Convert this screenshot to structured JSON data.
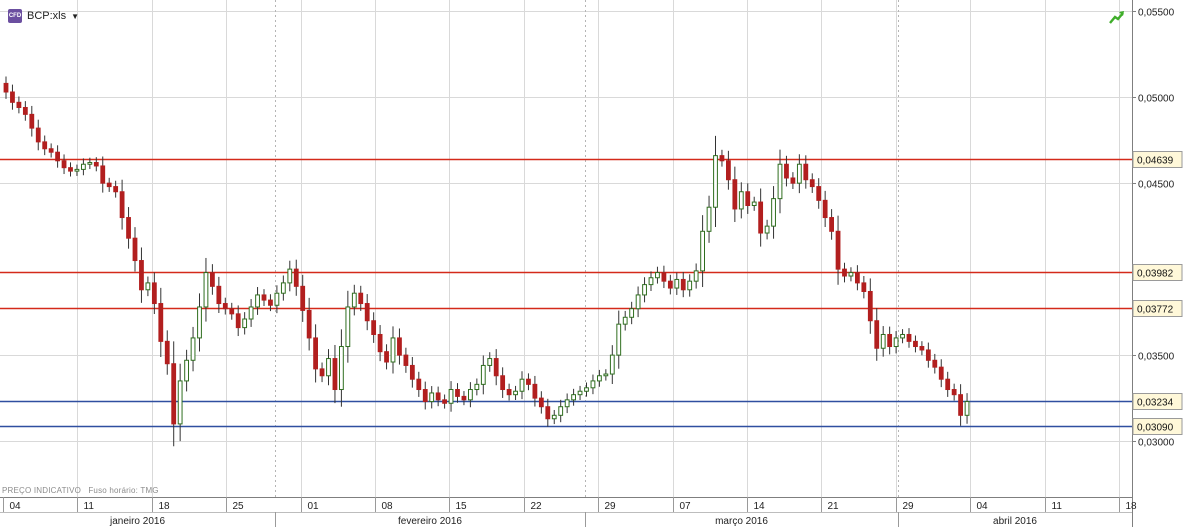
{
  "header": {
    "badge": "CFD",
    "symbol": "BCP:xls"
  },
  "footer": {
    "price_type": "PREÇO INDICATIVO",
    "timezone": "Fuso horário: TMG"
  },
  "colors": {
    "up": "#2f6e1f",
    "down": "#b21f1f",
    "resistance": "#d42a1a",
    "support": "#2f4fa0",
    "grid": "#d9d9d9",
    "label_bg": "#fff8d9"
  },
  "chart_data": {
    "type": "candlestick",
    "title": "",
    "xlabel": "",
    "ylabel": "",
    "ylim": [
      0.02675,
      0.05565
    ],
    "yticks": [
      "0,05500",
      "0,05000",
      "0,04500",
      "0,03500",
      "0,03000"
    ],
    "ytick_values": [
      0.055,
      0.05,
      0.045,
      0.035,
      0.03
    ],
    "x_day_labels": [
      "04",
      "11",
      "18",
      "25",
      "01",
      "08",
      "15",
      "22",
      "29",
      "07",
      "14",
      "21",
      "29",
      "04",
      "11",
      "18"
    ],
    "x_month_labels": [
      "janeiro 2016",
      "fevereiro 2016",
      "março 2016",
      "abril 2016"
    ],
    "grid": true,
    "horizontal_lines": [
      {
        "value": 0.04639,
        "label": "0,04639",
        "kind": "resistance"
      },
      {
        "value": 0.03982,
        "label": "0,03982",
        "kind": "resistance"
      },
      {
        "value": 0.03772,
        "label": "0,03772",
        "kind": "resistance"
      },
      {
        "value": 0.03234,
        "label": "0,03234",
        "kind": "support"
      },
      {
        "value": 0.0309,
        "label": "0,03090",
        "kind": "support"
      }
    ],
    "close": [
      0.0503,
      0.0497,
      0.0494,
      0.049,
      0.0482,
      0.0474,
      0.047,
      0.0468,
      0.0463,
      0.0459,
      0.0457,
      0.0458,
      0.0461,
      0.0462,
      0.046,
      0.045,
      0.0448,
      0.0445,
      0.043,
      0.0418,
      0.0405,
      0.0388,
      0.0392,
      0.038,
      0.0358,
      0.0345,
      0.031,
      0.0335,
      0.0347,
      0.036,
      0.0378,
      0.0398,
      0.039,
      0.038,
      0.0377,
      0.0374,
      0.0366,
      0.0371,
      0.0378,
      0.0385,
      0.0382,
      0.0379,
      0.0386,
      0.0392,
      0.04,
      0.039,
      0.0376,
      0.036,
      0.0342,
      0.0338,
      0.0348,
      0.033,
      0.0355,
      0.0378,
      0.0386,
      0.038,
      0.037,
      0.0362,
      0.0352,
      0.0346,
      0.036,
      0.035,
      0.0344,
      0.0336,
      0.033,
      0.0323,
      0.0328,
      0.0324,
      0.0322,
      0.033,
      0.0326,
      0.0324,
      0.033,
      0.0333,
      0.0344,
      0.0348,
      0.0338,
      0.033,
      0.0327,
      0.0329,
      0.0336,
      0.0333,
      0.0325,
      0.032,
      0.0313,
      0.0315,
      0.032,
      0.0324,
      0.0327,
      0.0329,
      0.0331,
      0.0335,
      0.0338,
      0.0339,
      0.035,
      0.0368,
      0.0372,
      0.0377,
      0.0385,
      0.0391,
      0.0395,
      0.0398,
      0.0393,
      0.0389,
      0.0394,
      0.0388,
      0.0393,
      0.0399,
      0.0422,
      0.0436,
      0.0466,
      0.0463,
      0.0452,
      0.0435,
      0.0445,
      0.0437,
      0.0439,
      0.0421,
      0.0425,
      0.0441,
      0.0461,
      0.0453,
      0.045,
      0.0461,
      0.0452,
      0.0448,
      0.044,
      0.043,
      0.0422,
      0.04,
      0.0396,
      0.0398,
      0.0392,
      0.0387,
      0.037,
      0.0354,
      0.0362,
      0.0355,
      0.036,
      0.0362,
      0.0358,
      0.0355,
      0.0353,
      0.0347,
      0.0343,
      0.0336,
      0.033,
      0.0327,
      0.0315,
      0.0323
    ]
  }
}
